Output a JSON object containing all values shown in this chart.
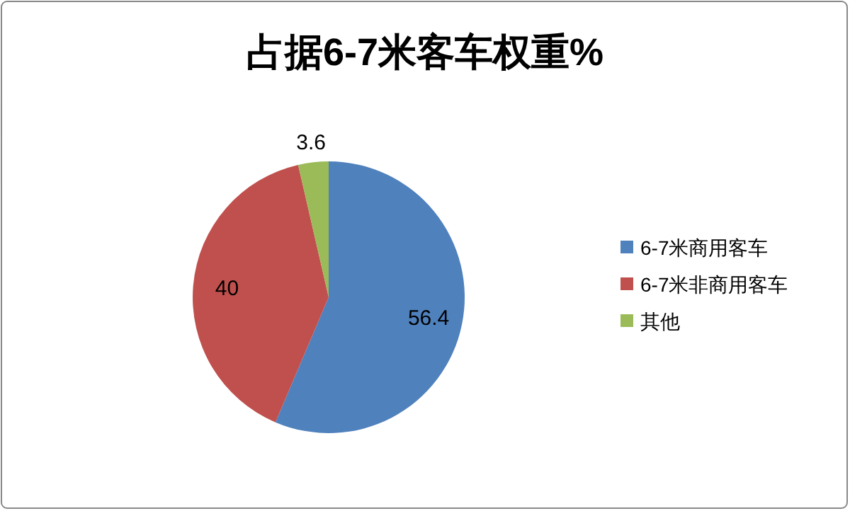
{
  "chart_data": {
    "type": "pie",
    "title": "占据6-7米客车权重%",
    "categories": [
      "6-7米商用客车",
      "6-7米非商用客车",
      "其他"
    ],
    "values": [
      56.4,
      40,
      3.6
    ],
    "colors": [
      "#4f81bd",
      "#c0504d",
      "#9bbb59"
    ],
    "data_labels": true,
    "legend": "right"
  }
}
